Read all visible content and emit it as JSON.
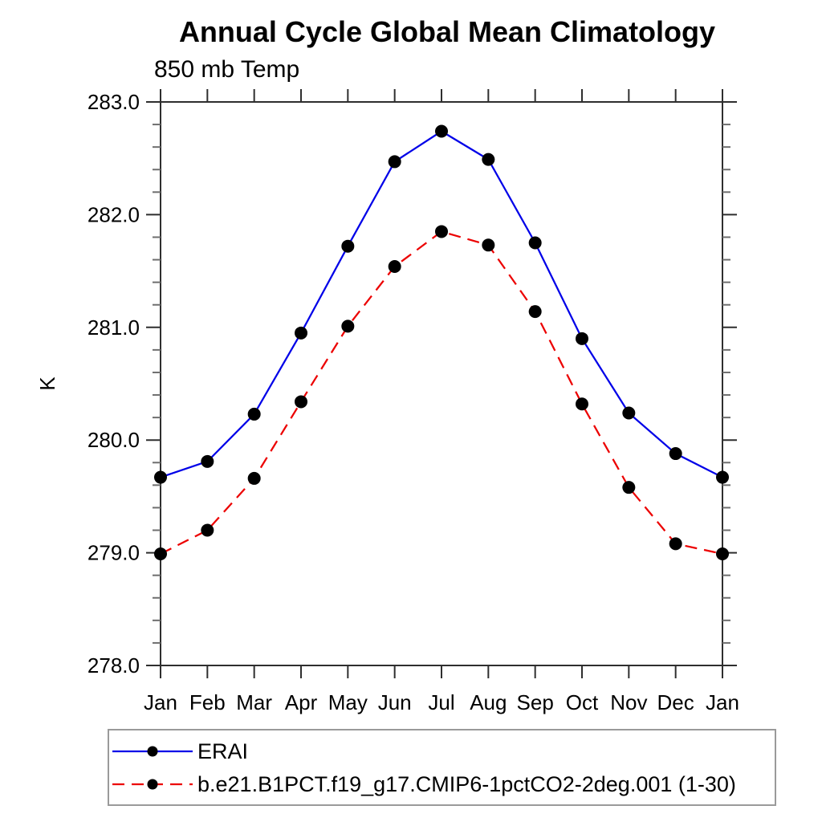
{
  "page": {
    "background_color": "#ffffff",
    "text_color": "#000000",
    "frame_color": "#2e2e2e",
    "minor_tick_color": "#6e6e6e",
    "legend_border_color": "#9a9a9a"
  },
  "chart_data": {
    "type": "line",
    "title": "Annual Cycle Global Mean Climatology",
    "subtitle": "850 mb Temp",
    "xlabel": "",
    "ylabel": "K",
    "categories": [
      "Jan",
      "Feb",
      "Mar",
      "Apr",
      "May",
      "Jun",
      "Jul",
      "Aug",
      "Sep",
      "Oct",
      "Nov",
      "Dec",
      "Jan"
    ],
    "ylim": [
      278.0,
      283.0
    ],
    "ytick_values": [
      278.0,
      279.0,
      280.0,
      281.0,
      282.0,
      283.0
    ],
    "ytick_labels": [
      "278.0",
      "279.0",
      "280.0",
      "281.0",
      "282.0",
      "283.0"
    ],
    "yminor_interval": 0.2,
    "grid": false,
    "legend_position": "bottom-left-box",
    "series": [
      {
        "name": "ERAI",
        "color": "#0000e8",
        "line_style": "solid",
        "marker": "filled-circle",
        "marker_color": "#000000",
        "values": [
          279.67,
          279.81,
          280.23,
          280.95,
          281.72,
          282.47,
          282.74,
          282.49,
          281.75,
          280.9,
          280.24,
          279.88,
          279.67
        ]
      },
      {
        "name": "b.e21.B1PCT.f19_g17.CMIP6-1pctCO2-2deg.001 (1-30)",
        "color": "#ec0000",
        "line_style": "dashed",
        "marker": "filled-circle",
        "marker_color": "#000000",
        "values": [
          278.99,
          279.2,
          279.66,
          280.34,
          281.01,
          281.54,
          281.85,
          281.73,
          281.14,
          280.32,
          279.58,
          279.08,
          278.99
        ]
      }
    ]
  }
}
